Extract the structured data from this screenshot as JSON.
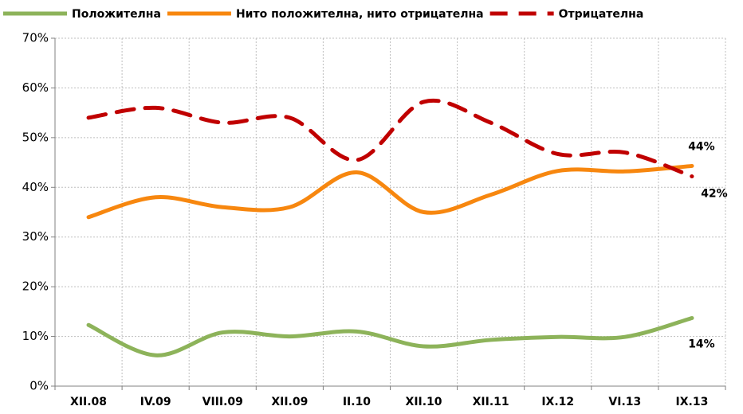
{
  "chart_data": {
    "type": "line",
    "categories": [
      "XII.08",
      "IV.09",
      "VIII.09",
      "XII.09",
      "II.10",
      "XII.10",
      "XII.11",
      "IX.12",
      "VI.13",
      "IX.13"
    ],
    "series": [
      {
        "name": "Положителна",
        "color": "#8db35a",
        "dash": false,
        "values": [
          12.3,
          6.2,
          10.8,
          10,
          11,
          8,
          9.3,
          9.9,
          9.9,
          13.7
        ],
        "value_labels": [
          null,
          null,
          null,
          null,
          null,
          null,
          null,
          null,
          null,
          "14%"
        ]
      },
      {
        "name": "Нито положителна, нито отрицателна",
        "color": "#f7870f",
        "dash": false,
        "values": [
          34,
          38,
          36,
          36,
          43,
          35,
          38.5,
          43.3,
          43.2,
          44.3
        ],
        "value_labels": [
          null,
          null,
          null,
          null,
          null,
          null,
          null,
          null,
          null,
          "44%"
        ]
      },
      {
        "name": "Отрицателна",
        "color": "#c00000",
        "dash": true,
        "values": [
          54,
          56,
          53,
          54,
          45.5,
          57.2,
          53,
          46.7,
          47,
          42.2
        ],
        "value_labels": [
          null,
          null,
          null,
          null,
          null,
          null,
          null,
          null,
          null,
          "42%"
        ]
      }
    ],
    "ylim": [
      0,
      70
    ],
    "yticks": [
      {
        "value": 0,
        "label": "0%"
      },
      {
        "value": 10,
        "label": "10%"
      },
      {
        "value": 20,
        "label": "20%"
      },
      {
        "value": 30,
        "label": "30%"
      },
      {
        "value": 40,
        "label": "40%"
      },
      {
        "value": 50,
        "label": "50%"
      },
      {
        "value": 60,
        "label": "60%"
      },
      {
        "value": 70,
        "label": "70%"
      }
    ],
    "grid": true,
    "legend": "top"
  }
}
